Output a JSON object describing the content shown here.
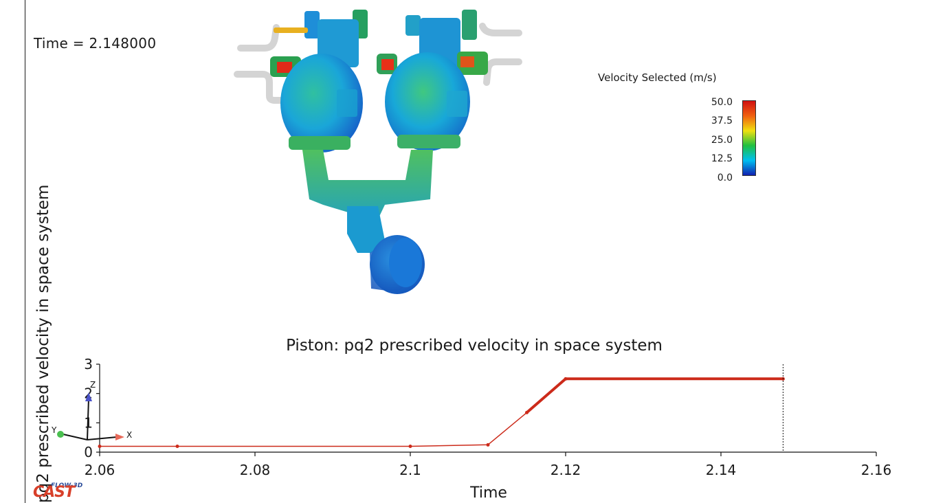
{
  "time_readout": "Time = 2.148000",
  "legend": {
    "title": "Velocity Selected (m/s)",
    "ticks": [
      "50.0",
      "37.5",
      "25.0",
      "12.5",
      "0.0"
    ],
    "min": 0,
    "max": 50,
    "colors": [
      "#1020b0",
      "#00c0f0",
      "#20c040",
      "#f0e010",
      "#f06010",
      "#d01010"
    ]
  },
  "axes_triad": {
    "x": "X",
    "y": "Y",
    "z": "Z"
  },
  "logo": {
    "small": "FLOW-3D",
    "main": "CAST"
  },
  "chart_data": {
    "type": "line",
    "title": "Piston: pq2 prescribed velocity in space system",
    "xlabel": "Time",
    "ylabel": "pq2 prescribed velocity in space system",
    "xlim": [
      2.06,
      2.16
    ],
    "ylim": [
      0,
      3
    ],
    "x_ticks": [
      "2.06",
      "2.08",
      "2.1",
      "2.12",
      "2.14",
      "2.16"
    ],
    "y_ticks": [
      "0",
      "1",
      "2",
      "3"
    ],
    "series": [
      {
        "x": [
          2.06,
          2.07,
          2.1,
          2.11,
          2.115,
          2.12,
          2.148
        ],
        "y": [
          0.2,
          0.2,
          0.2,
          0.25,
          1.35,
          2.5,
          2.5
        ]
      }
    ],
    "current_time": 2.148,
    "line_color": "#cc2a1a",
    "grid": false
  }
}
